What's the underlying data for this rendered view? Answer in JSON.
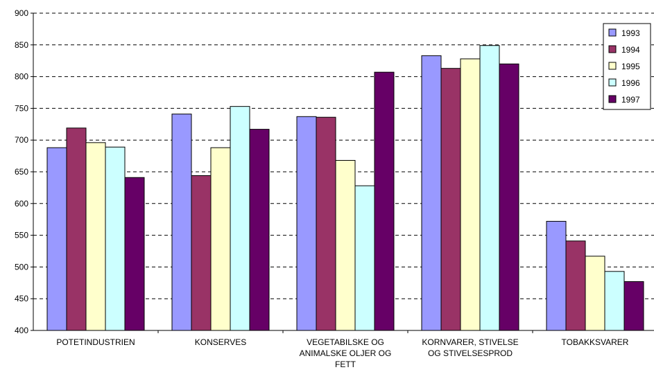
{
  "chart_data": {
    "type": "bar",
    "categories": [
      [
        "POTETINDUSTRIEN"
      ],
      [
        "KONSERVES"
      ],
      [
        "VEGETABILSKE OG",
        "ANIMALSKE OLJER OG",
        "FETT"
      ],
      [
        "KORNVARER, STIVELSE",
        "OG STIVELSESPROD"
      ],
      [
        "TOBAKKSVARER"
      ]
    ],
    "series": [
      {
        "name": "1993",
        "color": "#9999FF",
        "values": [
          688,
          741,
          737,
          833,
          572
        ]
      },
      {
        "name": "1994",
        "color": "#993366",
        "values": [
          719,
          644,
          736,
          813,
          541
        ]
      },
      {
        "name": "1995",
        "color": "#FFFFCC",
        "values": [
          696,
          688,
          668,
          828,
          517
        ]
      },
      {
        "name": "1996",
        "color": "#CCFFFF",
        "values": [
          689,
          753,
          628,
          849,
          493
        ]
      },
      {
        "name": "1997",
        "color": "#660066",
        "values": [
          641,
          717,
          807,
          820,
          477
        ]
      }
    ],
    "yticks": [
      "400",
      "450",
      "500",
      "550",
      "600",
      "650",
      "700",
      "750",
      "800",
      "850",
      "900"
    ],
    "ylim": [
      400,
      900
    ],
    "grid": "dashed horizontal",
    "legend_position": "top-right"
  }
}
